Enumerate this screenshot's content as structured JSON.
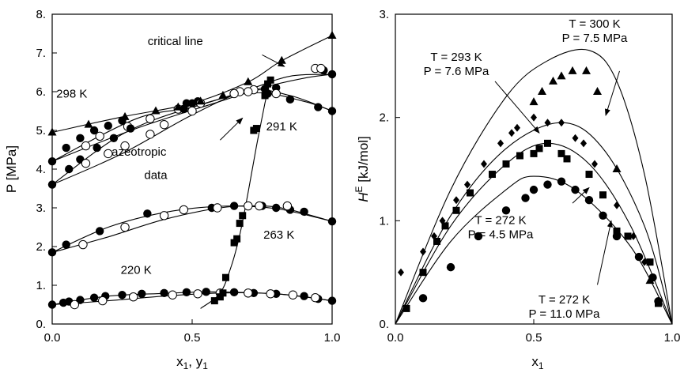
{
  "chart_data": [
    {
      "type": "scatter",
      "xlabel_main": "x",
      "xlabel_sub1": "1",
      "xlabel_sep": ", y",
      "xlabel_sub2": "1",
      "ylabel": "P [MPa]",
      "xlim": [
        0,
        1
      ],
      "ylim": [
        0,
        8
      ],
      "xticks": [
        0,
        0.5,
        1
      ],
      "xtick_labels": [
        "0.0",
        "0.5",
        "1.0"
      ],
      "yticks": [
        0,
        1,
        2,
        3,
        4,
        5,
        6,
        7,
        8
      ],
      "ytick_labels": [
        "0.",
        "1.",
        "2.",
        "3.",
        "4.",
        "5.",
        "6.",
        "7.",
        "8."
      ],
      "grid": false,
      "annotations": [
        {
          "text": "298 K",
          "x": 0.07,
          "y": 5.85
        },
        {
          "text": "291 K",
          "x": 0.82,
          "y": 5.0
        },
        {
          "text": "263 K",
          "x": 0.81,
          "y": 2.2
        },
        {
          "text": "220 K",
          "x": 0.3,
          "y": 1.3
        },
        {
          "text": "critical line",
          "x": 0.44,
          "y": 7.2
        },
        {
          "text": "azeotropic",
          "x": 0.31,
          "y": 4.35
        },
        {
          "text": "data",
          "x": 0.37,
          "y": 3.75
        }
      ],
      "arrows": [
        {
          "from": [
            0.75,
            6.95
          ],
          "to": [
            0.83,
            6.65
          ]
        },
        {
          "from": [
            0.6,
            4.75
          ],
          "to": [
            0.68,
            5.32
          ]
        }
      ],
      "series": [
        {
          "marker": "filled-circle",
          "x": [
            0.0,
            0.05,
            0.1,
            0.15,
            0.2,
            0.25,
            0.48,
            0.52,
            0.72,
            0.76,
            0.8,
            0.97,
            1.0
          ],
          "y": [
            4.2,
            4.55,
            4.8,
            5.0,
            5.12,
            5.25,
            5.7,
            5.75,
            6.05,
            6.07,
            6.1,
            6.55,
            6.45
          ]
        },
        {
          "marker": "open-circle",
          "x": [
            0.12,
            0.17,
            0.27,
            0.35,
            0.45,
            0.53,
            0.67,
            0.72,
            0.94,
            0.96
          ],
          "y": [
            4.6,
            4.85,
            5.1,
            5.3,
            5.55,
            5.7,
            6.0,
            6.05,
            6.6,
            6.6
          ]
        },
        {
          "marker": "filled-circle",
          "x": [
            0.0,
            0.06,
            0.1,
            0.16,
            0.22,
            0.28,
            0.47,
            0.5,
            0.77,
            0.85,
            0.95,
            1.0
          ],
          "y": [
            3.6,
            4.0,
            4.25,
            4.55,
            4.8,
            5.05,
            5.55,
            5.7,
            5.95,
            5.8,
            5.6,
            5.5
          ]
        },
        {
          "marker": "open-circle",
          "x": [
            0.12,
            0.2,
            0.26,
            0.35,
            0.4,
            0.5,
            0.65,
            0.7,
            0.8
          ],
          "y": [
            4.15,
            4.4,
            4.6,
            4.9,
            5.15,
            5.5,
            5.95,
            6.0,
            5.95
          ]
        },
        {
          "marker": "filled-circle",
          "x": [
            0.0,
            0.05,
            0.17,
            0.34,
            0.57,
            0.65,
            0.75,
            0.8,
            0.85,
            0.9,
            1.0
          ],
          "y": [
            1.85,
            2.05,
            2.4,
            2.85,
            3.0,
            3.05,
            3.05,
            3.0,
            2.95,
            2.9,
            2.65
          ]
        },
        {
          "marker": "open-circle",
          "x": [
            0.11,
            0.26,
            0.4,
            0.47,
            0.59,
            0.7,
            0.74,
            0.84
          ],
          "y": [
            2.05,
            2.5,
            2.8,
            2.95,
            3.0,
            3.05,
            3.05,
            3.05
          ]
        },
        {
          "marker": "filled-circle",
          "x": [
            0.0,
            0.04,
            0.06,
            0.1,
            0.15,
            0.19,
            0.25,
            0.32,
            0.4,
            0.48,
            0.55,
            0.65,
            0.72,
            0.8,
            0.9,
            0.95,
            1.0
          ],
          "y": [
            0.5,
            0.55,
            0.58,
            0.62,
            0.68,
            0.72,
            0.75,
            0.78,
            0.8,
            0.82,
            0.83,
            0.82,
            0.8,
            0.78,
            0.72,
            0.65,
            0.6
          ]
        },
        {
          "marker": "open-circle",
          "x": [
            0.08,
            0.18,
            0.29,
            0.43,
            0.52,
            0.6,
            0.7,
            0.78,
            0.86,
            0.94
          ],
          "y": [
            0.5,
            0.6,
            0.7,
            0.75,
            0.78,
            0.8,
            0.8,
            0.78,
            0.75,
            0.68
          ]
        },
        {
          "marker": "filled-triangle",
          "x": [
            0.0,
            0.13,
            0.26,
            0.37,
            0.45,
            0.53,
            0.61,
            0.7,
            0.82,
            1.0
          ],
          "y": [
            4.95,
            5.15,
            5.35,
            5.5,
            5.6,
            5.75,
            5.9,
            6.25,
            6.8,
            7.45
          ]
        },
        {
          "marker": "filled-square",
          "x": [
            0.58,
            0.6,
            0.61,
            0.62,
            0.65,
            0.66,
            0.67,
            0.68,
            0.72,
            0.73,
            0.76,
            0.77,
            0.78
          ],
          "y": [
            0.6,
            0.7,
            0.8,
            1.2,
            2.1,
            2.2,
            2.6,
            2.8,
            5.0,
            5.05,
            5.9,
            6.2,
            6.3
          ]
        }
      ],
      "lines": [
        {
          "x": [
            0.0,
            0.3,
            0.6,
            0.75,
            0.9,
            1.0
          ],
          "y": [
            4.2,
            5.05,
            5.75,
            6.1,
            6.35,
            6.45
          ]
        },
        {
          "x": [
            0.0,
            0.3,
            0.5,
            0.7,
            0.85,
            1.0
          ],
          "y": [
            4.2,
            5.3,
            5.6,
            6.05,
            6.4,
            6.45
          ]
        },
        {
          "x": [
            0.0,
            0.25,
            0.5,
            0.72,
            0.9,
            1.0
          ],
          "y": [
            3.6,
            4.9,
            5.6,
            5.97,
            5.75,
            5.5
          ]
        },
        {
          "x": [
            0.0,
            0.25,
            0.5,
            0.7,
            0.85,
            1.0
          ],
          "y": [
            3.6,
            4.4,
            5.4,
            6.02,
            5.9,
            5.5
          ]
        },
        {
          "x": [
            0.0,
            0.2,
            0.4,
            0.6,
            0.8,
            1.0
          ],
          "y": [
            1.85,
            2.5,
            2.88,
            3.04,
            2.98,
            2.65
          ]
        },
        {
          "x": [
            0.0,
            0.2,
            0.4,
            0.6,
            0.75,
            0.85,
            1.0
          ],
          "y": [
            1.85,
            2.25,
            2.7,
            3.0,
            3.05,
            2.95,
            2.65
          ]
        },
        {
          "x": [
            0.0,
            0.2,
            0.4,
            0.55,
            0.7,
            0.85,
            1.0
          ],
          "y": [
            0.5,
            0.72,
            0.79,
            0.83,
            0.81,
            0.75,
            0.6
          ]
        },
        {
          "x": [
            0.0,
            0.2,
            0.4,
            0.6,
            0.8,
            1.0
          ],
          "y": [
            0.5,
            0.6,
            0.72,
            0.8,
            0.78,
            0.6
          ]
        },
        {
          "x": [
            0.0,
            0.25,
            0.5,
            0.7,
            0.82,
            1.0
          ],
          "y": [
            4.95,
            5.35,
            5.7,
            6.25,
            6.8,
            7.45
          ]
        },
        {
          "x": [
            0.53,
            0.6,
            0.64,
            0.67,
            0.7,
            0.73,
            0.76,
            0.78
          ],
          "y": [
            0.4,
            0.8,
            1.5,
            2.3,
            3.4,
            4.6,
            5.7,
            6.3
          ]
        }
      ]
    },
    {
      "type": "scatter",
      "xlabel_main": "x",
      "xlabel_sub": "1",
      "ylabel_main": "H",
      "ylabel_sup": "E",
      "ylabel_unit": " [kJ/mol]",
      "xlim": [
        0,
        1
      ],
      "ylim": [
        0,
        3
      ],
      "xticks": [
        0,
        0.5,
        1
      ],
      "xtick_labels": [
        "0.0",
        "0.5",
        "1.0"
      ],
      "yticks": [
        0,
        1,
        2,
        3
      ],
      "ytick_labels": [
        "0.",
        "1.",
        "2.",
        "3."
      ],
      "grid": false,
      "annotations": [
        {
          "lines": [
            "T = 300 K",
            "P = 7.5 MPa"
          ],
          "x": 0.72,
          "y": 2.87
        },
        {
          "lines": [
            "T = 293 K",
            "P = 7.6 MPa"
          ],
          "x": 0.22,
          "y": 2.55
        },
        {
          "lines": [
            "T = 272 K",
            "P = 4.5 MPa"
          ],
          "x": 0.38,
          "y": 0.97
        },
        {
          "lines": [
            "T = 272 K",
            "P = 11.0 MPa"
          ],
          "x": 0.61,
          "y": 0.2
        }
      ],
      "arrows": [
        {
          "from": [
            0.81,
            2.45
          ],
          "to": [
            0.76,
            2.02
          ]
        },
        {
          "from": [
            0.36,
            2.35
          ],
          "to": [
            0.52,
            1.85
          ]
        },
        {
          "from": [
            0.64,
            1.17
          ],
          "to": [
            0.7,
            1.32
          ]
        },
        {
          "from": [
            0.73,
            0.38
          ],
          "to": [
            0.78,
            1.0
          ]
        }
      ],
      "series": [
        {
          "marker": "filled-triangle",
          "x": [
            0.5,
            0.53,
            0.57,
            0.6,
            0.64,
            0.69,
            0.73,
            0.8,
            0.92
          ],
          "y": [
            2.15,
            2.25,
            2.35,
            2.4,
            2.45,
            2.45,
            2.25,
            1.5,
            0.42
          ]
        },
        {
          "marker": "filled-diamond",
          "x": [
            0.02,
            0.1,
            0.14,
            0.17,
            0.22,
            0.26,
            0.32,
            0.38,
            0.42,
            0.44,
            0.5,
            0.55,
            0.6,
            0.65,
            0.68,
            0.72,
            0.8,
            0.86,
            0.9
          ],
          "y": [
            0.5,
            0.7,
            0.85,
            1.0,
            1.2,
            1.35,
            1.55,
            1.75,
            1.85,
            1.9,
            2.0,
            1.95,
            1.95,
            1.8,
            1.75,
            1.55,
            1.15,
            0.85,
            0.6
          ]
        },
        {
          "marker": "filled-square",
          "x": [
            0.04,
            0.1,
            0.15,
            0.18,
            0.22,
            0.27,
            0.35,
            0.4,
            0.45,
            0.5,
            0.52,
            0.55,
            0.6,
            0.62,
            0.7,
            0.75,
            0.8,
            0.84,
            0.92,
            0.95
          ],
          "y": [
            0.15,
            0.5,
            0.8,
            0.95,
            1.1,
            1.27,
            1.45,
            1.55,
            1.63,
            1.65,
            1.7,
            1.75,
            1.65,
            1.6,
            1.45,
            1.25,
            0.9,
            0.85,
            0.6,
            0.2
          ]
        },
        {
          "marker": "filled-circle",
          "x": [
            0.1,
            0.2,
            0.3,
            0.4,
            0.47,
            0.5,
            0.55,
            0.6,
            0.65,
            0.7,
            0.75,
            0.8,
            0.88,
            0.93,
            0.95
          ],
          "y": [
            0.25,
            0.55,
            0.85,
            1.1,
            1.22,
            1.3,
            1.35,
            1.38,
            1.3,
            1.2,
            1.05,
            0.85,
            0.65,
            0.45,
            0.22
          ]
        }
      ],
      "lines": [
        {
          "x": [
            0.0,
            0.2,
            0.4,
            0.55,
            0.7,
            0.8,
            0.9,
            1.0
          ],
          "y": [
            0.0,
            1.3,
            2.2,
            2.55,
            2.65,
            2.35,
            1.45,
            0.0
          ]
        },
        {
          "x": [
            0.0,
            0.2,
            0.4,
            0.6,
            0.75,
            0.9,
            1.0
          ],
          "y": [
            0.0,
            1.05,
            1.7,
            1.95,
            1.7,
            0.95,
            0.0
          ]
        },
        {
          "x": [
            0.0,
            0.2,
            0.4,
            0.55,
            0.7,
            0.85,
            1.0
          ],
          "y": [
            0.0,
            0.95,
            1.55,
            1.75,
            1.55,
            0.95,
            0.0
          ]
        },
        {
          "x": [
            0.0,
            0.2,
            0.4,
            0.5,
            0.65,
            0.85,
            1.0
          ],
          "y": [
            0.0,
            0.8,
            1.3,
            1.43,
            1.3,
            0.75,
            0.0
          ]
        }
      ]
    }
  ]
}
